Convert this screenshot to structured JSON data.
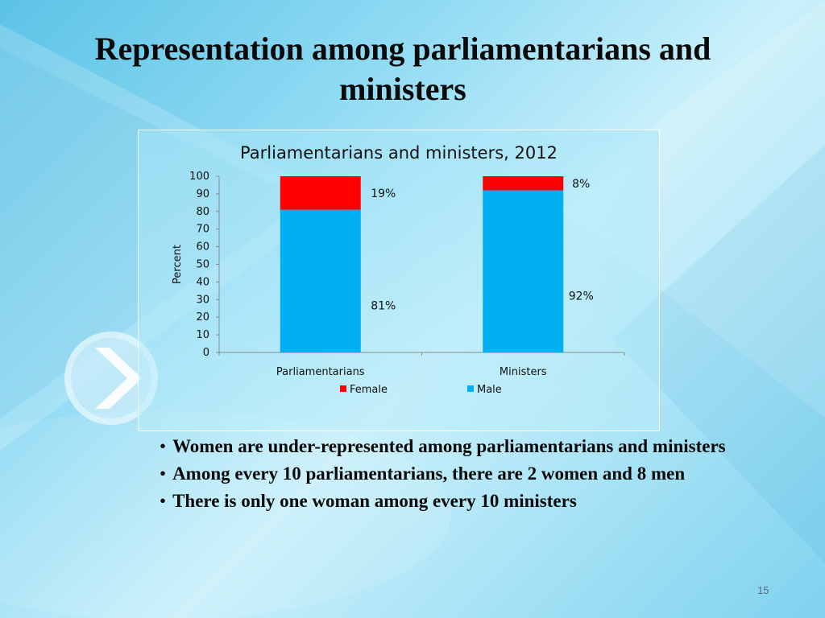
{
  "slide": {
    "title": "Representation among parliamentarians and ministers",
    "slide_number": "15"
  },
  "bullets": [
    "Women are under-represented among  parliamentarians and ministers",
    "Among every 10 parliamentarians, there are  2 women and 8 men",
    "There is only one woman among every 10 ministers"
  ],
  "chart_data": {
    "type": "bar",
    "stacked": true,
    "title": "Parliamentarians and ministers, 2012",
    "xlabel": "",
    "ylabel": "Percent",
    "ylim": [
      0,
      100
    ],
    "yticks": [
      0,
      10,
      20,
      30,
      40,
      50,
      60,
      70,
      80,
      90,
      100
    ],
    "categories": [
      "Parliamentarians",
      "Ministers"
    ],
    "series": [
      {
        "name": "Male",
        "values": [
          81,
          92
        ],
        "labels": [
          "81%",
          "92%"
        ],
        "color": "#00b0f0"
      },
      {
        "name": "Female",
        "values": [
          19,
          8
        ],
        "labels": [
          "19%",
          "8%"
        ],
        "color": "#ff0000"
      }
    ],
    "legend": [
      {
        "name": "Female",
        "color": "#ff0000"
      },
      {
        "name": "Male",
        "color": "#00b0f0"
      }
    ],
    "legend_position": "bottom",
    "grid": false
  }
}
